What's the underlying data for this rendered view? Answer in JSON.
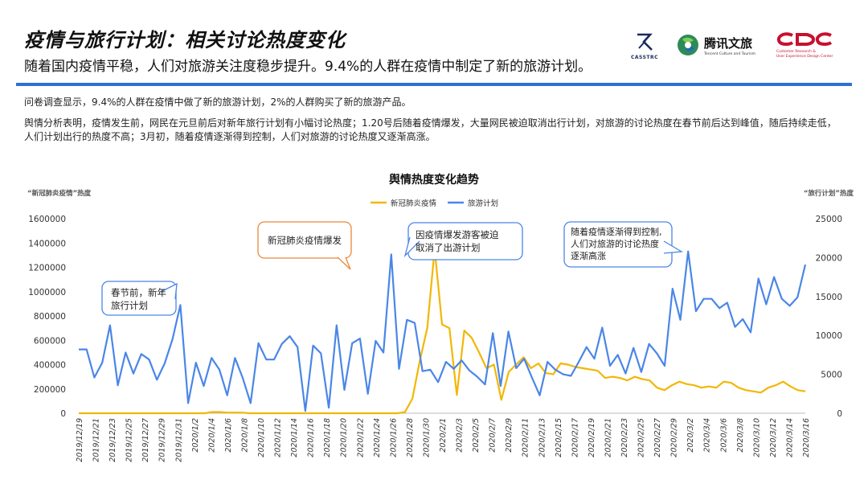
{
  "header": {
    "title": "疫情与旅行计划：相关讨论热度变化",
    "subtitle": "随着国内疫情平稳，人们对旅游关注度稳步提升。9.4%的人群在疫情中制定了新的旅游计划。"
  },
  "logos": {
    "casstrc": "CASSTRC",
    "tencent_name": "腾讯文旅",
    "tencent_en": "Tencent Culture and Tourism",
    "cdc_en1": "Customer Research &",
    "cdc_en2": "User Experience Design Center"
  },
  "body_text": {
    "p1": "问卷调查显示，9.4%的人群在疫情中做了新的旅游计划，2%的人群购买了新的旅游产品。",
    "p2": "舆情分析表明，疫情发生前，网民在元旦前后对新年旅行计划有小幅讨论热度；1.20号后随着疫情爆发，大量网民被迫取消出行计划，对旅游的讨论热度在春节前后达到峰值，随后持续走低，人们计划出行的热度不高；3月初，随着疫情逐渐得到控制，人们对旅游的讨论热度又逐渐高涨。"
  },
  "colors": {
    "accent_blue": "#2f6fd1",
    "series_yellow": "#f2b705",
    "series_blue": "#4a86e8",
    "callout_orange": "#e8893a",
    "callout_blue": "#4a86e8",
    "logo_red": "#c8102e"
  },
  "chart_data": {
    "type": "line",
    "title": "舆情热度变化趋势",
    "ylabel_left": "“新冠肺炎疫情”热度",
    "ylabel_right": "“旅行计划”热度",
    "ylim_left": [
      0,
      1600000
    ],
    "ylim_right": [
      0,
      25000
    ],
    "yticks_left": [
      "0",
      "200000",
      "400000",
      "600000",
      "800000",
      "1000000",
      "1200000",
      "1400000",
      "1600000"
    ],
    "yticks_right": [
      "0",
      "5000",
      "10000",
      "15000",
      "20000",
      "25000"
    ],
    "x_tick_labels": [
      "2019/12/19",
      "2019/12/21",
      "2019/12/23",
      "2019/12/25",
      "2019/12/27",
      "2019/12/29",
      "2019/12/31",
      "2020/1/2",
      "2020/1/4",
      "2020/1/6",
      "2020/1/8",
      "2020/1/10",
      "2020/1/12",
      "2020/1/14",
      "2020/1/16",
      "2020/1/18",
      "2020/1/20",
      "2020/1/22",
      "2020/1/24",
      "2020/1/26",
      "2020/1/28",
      "2020/1/30",
      "2020/2/1",
      "2020/2/3",
      "2020/2/5",
      "2020/2/7",
      "2020/2/9",
      "2020/2/11",
      "2020/2/13",
      "2020/2/15",
      "2020/2/17",
      "2020/2/19",
      "2020/2/21",
      "2020/2/23",
      "2020/2/25",
      "2020/2/27",
      "2020/2/29",
      "2020/3/2",
      "2020/3/4",
      "2020/3/6",
      "2020/3/8",
      "2020/3/10",
      "2020/3/12",
      "2020/3/14",
      "2020/3/16"
    ],
    "series": [
      {
        "name": "新冠肺炎疫情",
        "axis": "left",
        "values": [
          0,
          0,
          0,
          0,
          0,
          0,
          0,
          0,
          0,
          0,
          0,
          0,
          0,
          0,
          0,
          0,
          0,
          0,
          10000,
          10000,
          5000,
          5000,
          5000,
          0,
          0,
          0,
          0,
          0,
          0,
          0,
          0,
          0,
          0,
          0,
          0,
          0,
          0,
          0,
          0,
          0,
          0,
          0,
          0,
          0,
          10000,
          120000,
          430000,
          700000,
          1350000,
          730000,
          700000,
          150000,
          680000,
          620000,
          500000,
          370000,
          400000,
          110000,
          340000,
          400000,
          460000,
          370000,
          410000,
          330000,
          320000,
          410000,
          400000,
          380000,
          370000,
          360000,
          350000,
          290000,
          300000,
          290000,
          270000,
          300000,
          280000,
          270000,
          210000,
          190000,
          230000,
          260000,
          240000,
          230000,
          210000,
          220000,
          210000,
          260000,
          250000,
          210000,
          190000,
          180000,
          170000,
          210000,
          230000,
          260000,
          220000,
          190000,
          180000
        ]
      },
      {
        "name": "旅游计划",
        "axis": "right",
        "values": [
          8200,
          8200,
          4600,
          6500,
          11300,
          3600,
          7800,
          5100,
          7600,
          6900,
          4300,
          6400,
          9500,
          13900,
          1300,
          6500,
          3500,
          7100,
          5600,
          2300,
          7100,
          4500,
          1300,
          9000,
          6900,
          6900,
          8900,
          9900,
          8500,
          300,
          8700,
          7700,
          700,
          11300,
          3000,
          9000,
          9600,
          2500,
          9300,
          7800,
          20400,
          5700,
          12000,
          11600,
          5400,
          5600,
          4000,
          6600,
          5700,
          6800,
          5500,
          4700,
          3700,
          10300,
          3500,
          10500,
          5800,
          7000,
          4600,
          2300,
          6600,
          5600,
          5000,
          4800,
          6600,
          8500,
          7000,
          11000,
          6100,
          7500,
          5100,
          8400,
          5300,
          8900,
          7700,
          6100,
          16000,
          12000,
          20800,
          13100,
          14700,
          14700,
          13500,
          14200,
          11100,
          12100,
          10400,
          17300,
          14000,
          17500,
          14700,
          13800,
          14900,
          19100
        ]
      }
    ]
  },
  "callouts": {
    "orange": "新冠肺炎疫情爆发",
    "blue_left_1": "春节前，新年",
    "blue_left_2": "旅行计划",
    "blue_mid_1": "因疫情爆发游客被迫",
    "blue_mid_2": "取消了出游计划",
    "blue_right_1": "随着疫情逐渐得到控制,",
    "blue_right_2": "人们对旅游的讨论热度",
    "blue_right_3": "逐渐高涨"
  }
}
